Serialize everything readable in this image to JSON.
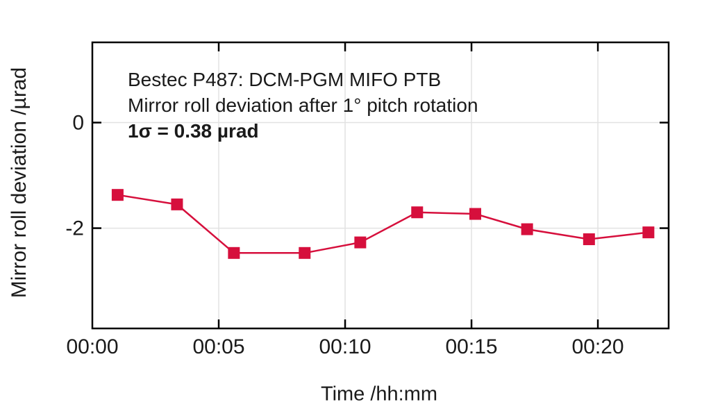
{
  "chart_data": {
    "type": "line",
    "title": "Bestec P487: DCM-PGM MIFO PTB",
    "subtitle": "Mirror roll deviation after 1° pitch rotation",
    "annotation": {
      "line1": "Bestec P487: DCM-PGM MIFO PTB",
      "line2": "Mirror roll deviation after 1° pitch rotation",
      "line3": "1σ = 0.38 µrad"
    },
    "sigma_urad": 0.38,
    "xlabel": "Time /hh:mm",
    "ylabel": "Mirror roll deviation /µrad",
    "x_unit": "minutes",
    "y_unit": "µrad",
    "xlim": [
      0,
      22.8
    ],
    "ylim": [
      -3.9,
      1.52
    ],
    "grid": true,
    "legend_position": "none",
    "x_ticks": [
      {
        "value": 0,
        "label": "00:00"
      },
      {
        "value": 5,
        "label": "00:05"
      },
      {
        "value": 10,
        "label": "00:10"
      },
      {
        "value": 15,
        "label": "00:15"
      },
      {
        "value": 20,
        "label": "00:20"
      }
    ],
    "y_ticks": [
      {
        "value": 0,
        "label": "0"
      },
      {
        "value": -2,
        "label": "-2"
      }
    ],
    "series": [
      {
        "name": "mirror-roll-deviation",
        "marker": "square",
        "x": [
          1.0,
          3.35,
          5.6,
          8.4,
          10.6,
          12.85,
          15.15,
          17.2,
          19.65,
          22.0
        ],
        "values": [
          -1.37,
          -1.55,
          -2.47,
          -2.47,
          -2.27,
          -1.7,
          -1.73,
          -2.02,
          -2.21,
          -2.08
        ]
      }
    ],
    "colors": {
      "series": "#d60f3c",
      "axis": "#000000",
      "grid": "#e2e2e2",
      "text": "#1a1a1a",
      "background": "#ffffff"
    }
  }
}
